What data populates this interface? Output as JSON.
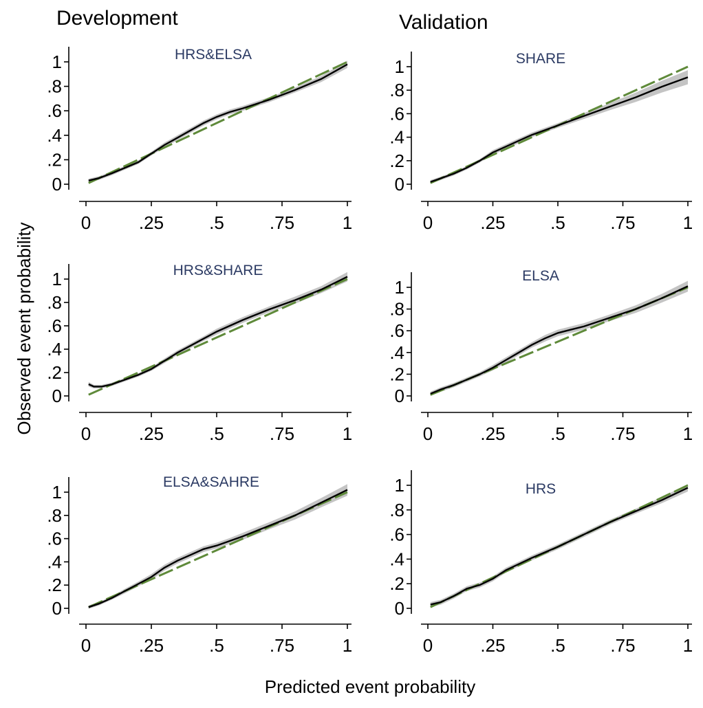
{
  "column_titles": [
    "Development",
    "Validation"
  ],
  "y_axis_title": "Observed event probability",
  "x_axis_title": "Predicted event probability",
  "colors": {
    "reference_line": "#5f8a3a",
    "calibration_line": "#000000",
    "confidence_band": "#c4c4c4",
    "panel_label": "#2b3a63"
  },
  "chart_data": [
    {
      "type": "line",
      "column": "Development",
      "panel_label": "HRS&ELSA",
      "xlim": [
        0,
        1
      ],
      "ylim": [
        0,
        1
      ],
      "x_ticks": [
        "0",
        ".25",
        ".5",
        ".75",
        "1"
      ],
      "y_ticks": [
        "0",
        ".2",
        ".4",
        ".6",
        ".8",
        "1"
      ],
      "series": [
        {
          "x": [
            0.01,
            0.05,
            0.1,
            0.2,
            0.25,
            0.3,
            0.35,
            0.4,
            0.45,
            0.5,
            0.55,
            0.6,
            0.7,
            0.8,
            0.9,
            1.0
          ],
          "y": [
            0.03,
            0.05,
            0.09,
            0.18,
            0.25,
            0.32,
            0.38,
            0.44,
            0.5,
            0.55,
            0.59,
            0.62,
            0.69,
            0.77,
            0.86,
            0.98
          ],
          "ci_width": [
            0.015,
            0.015,
            0.015,
            0.015,
            0.015,
            0.02,
            0.02,
            0.02,
            0.02,
            0.02,
            0.02,
            0.02,
            0.02,
            0.02,
            0.025,
            0.03
          ]
        },
        {
          "x": [
            0.01,
            1.0
          ],
          "y": [
            0.01,
            1.0
          ]
        }
      ]
    },
    {
      "type": "line",
      "column": "Validation",
      "panel_label": "SHARE",
      "xlim": [
        0,
        1
      ],
      "ylim": [
        0,
        1
      ],
      "x_ticks": [
        "0",
        ".25",
        ".5",
        ".75",
        "1"
      ],
      "y_ticks": [
        "0",
        ".2",
        ".4",
        ".6",
        ".8",
        "1"
      ],
      "series": [
        {
          "x": [
            0.01,
            0.05,
            0.1,
            0.15,
            0.2,
            0.25,
            0.3,
            0.35,
            0.4,
            0.5,
            0.6,
            0.7,
            0.8,
            0.9,
            1.0
          ],
          "y": [
            0.02,
            0.05,
            0.09,
            0.14,
            0.2,
            0.27,
            0.32,
            0.37,
            0.42,
            0.5,
            0.58,
            0.66,
            0.74,
            0.83,
            0.91
          ],
          "ci_width": [
            0.015,
            0.015,
            0.015,
            0.015,
            0.015,
            0.02,
            0.02,
            0.02,
            0.02,
            0.02,
            0.025,
            0.03,
            0.04,
            0.05,
            0.06
          ]
        },
        {
          "x": [
            0.01,
            1.0
          ],
          "y": [
            0.01,
            1.0
          ]
        }
      ]
    },
    {
      "type": "line",
      "column": "Development",
      "panel_label": "HRS&SHARE",
      "xlim": [
        0,
        1
      ],
      "ylim": [
        0,
        1
      ],
      "x_ticks": [
        "0",
        ".25",
        ".5",
        ".75",
        "1"
      ],
      "y_ticks": [
        "0",
        ".2",
        ".4",
        ".6",
        ".8",
        "1"
      ],
      "series": [
        {
          "x": [
            0.01,
            0.03,
            0.06,
            0.1,
            0.15,
            0.2,
            0.25,
            0.3,
            0.35,
            0.4,
            0.45,
            0.5,
            0.55,
            0.6,
            0.7,
            0.8,
            0.9,
            1.0
          ],
          "y": [
            0.1,
            0.08,
            0.08,
            0.1,
            0.14,
            0.18,
            0.23,
            0.3,
            0.37,
            0.43,
            0.49,
            0.55,
            0.6,
            0.65,
            0.74,
            0.82,
            0.91,
            1.02
          ],
          "ci_width": [
            0.02,
            0.015,
            0.015,
            0.015,
            0.015,
            0.015,
            0.015,
            0.02,
            0.02,
            0.02,
            0.02,
            0.025,
            0.025,
            0.025,
            0.025,
            0.03,
            0.03,
            0.04
          ]
        },
        {
          "x": [
            0.01,
            1.0
          ],
          "y": [
            0.01,
            1.0
          ]
        }
      ]
    },
    {
      "type": "line",
      "column": "Validation",
      "panel_label": "ELSA",
      "xlim": [
        0,
        1
      ],
      "ylim": [
        0,
        1
      ],
      "x_ticks": [
        "0",
        ".25",
        ".5",
        ".75",
        "1"
      ],
      "y_ticks": [
        "0",
        ".2",
        ".4",
        ".6",
        ".8",
        "1"
      ],
      "series": [
        {
          "x": [
            0.01,
            0.05,
            0.1,
            0.15,
            0.2,
            0.25,
            0.3,
            0.35,
            0.4,
            0.45,
            0.5,
            0.55,
            0.6,
            0.7,
            0.8,
            0.9,
            1.0
          ],
          "y": [
            0.02,
            0.06,
            0.1,
            0.15,
            0.2,
            0.26,
            0.33,
            0.4,
            0.47,
            0.53,
            0.58,
            0.61,
            0.64,
            0.72,
            0.8,
            0.9,
            1.01
          ],
          "ci_width": [
            0.02,
            0.02,
            0.02,
            0.02,
            0.02,
            0.025,
            0.025,
            0.025,
            0.025,
            0.03,
            0.03,
            0.03,
            0.03,
            0.03,
            0.035,
            0.04,
            0.05
          ]
        },
        {
          "x": [
            0.01,
            1.0
          ],
          "y": [
            0.01,
            1.0
          ]
        }
      ]
    },
    {
      "type": "line",
      "column": "Development",
      "panel_label": "ELSA&SAHRE",
      "xlim": [
        0,
        1
      ],
      "ylim": [
        0,
        1
      ],
      "x_ticks": [
        "0",
        ".25",
        ".5",
        ".75",
        "1"
      ],
      "y_ticks": [
        "0",
        ".2",
        ".4",
        ".6",
        ".8",
        "1"
      ],
      "series": [
        {
          "x": [
            0.01,
            0.05,
            0.1,
            0.15,
            0.2,
            0.25,
            0.3,
            0.35,
            0.4,
            0.45,
            0.5,
            0.55,
            0.6,
            0.7,
            0.8,
            0.9,
            1.0
          ],
          "y": [
            0.01,
            0.04,
            0.09,
            0.15,
            0.21,
            0.27,
            0.35,
            0.41,
            0.46,
            0.51,
            0.54,
            0.58,
            0.62,
            0.71,
            0.8,
            0.91,
            1.02
          ],
          "ci_width": [
            0.015,
            0.015,
            0.015,
            0.02,
            0.02,
            0.025,
            0.025,
            0.025,
            0.025,
            0.025,
            0.025,
            0.025,
            0.03,
            0.03,
            0.035,
            0.04,
            0.05
          ]
        },
        {
          "x": [
            0.01,
            1.0
          ],
          "y": [
            0.01,
            1.0
          ]
        }
      ]
    },
    {
      "type": "line",
      "column": "Validation",
      "panel_label": "HRS",
      "xlim": [
        0,
        1
      ],
      "ylim": [
        0,
        1
      ],
      "x_ticks": [
        "0",
        ".25",
        ".5",
        ".75",
        "1"
      ],
      "y_ticks": [
        "0",
        ".2",
        ".4",
        ".6",
        ".8",
        "1"
      ],
      "series": [
        {
          "x": [
            0.01,
            0.05,
            0.1,
            0.15,
            0.2,
            0.25,
            0.3,
            0.35,
            0.4,
            0.5,
            0.6,
            0.7,
            0.8,
            0.9,
            1.0
          ],
          "y": [
            0.03,
            0.05,
            0.1,
            0.16,
            0.19,
            0.24,
            0.31,
            0.36,
            0.41,
            0.5,
            0.6,
            0.7,
            0.79,
            0.88,
            0.98
          ],
          "ci_width": [
            0.02,
            0.02,
            0.02,
            0.02,
            0.02,
            0.02,
            0.02,
            0.02,
            0.02,
            0.02,
            0.02,
            0.02,
            0.02,
            0.025,
            0.03
          ]
        },
        {
          "x": [
            0.01,
            1.0
          ],
          "y": [
            0.01,
            1.0
          ]
        }
      ]
    }
  ]
}
